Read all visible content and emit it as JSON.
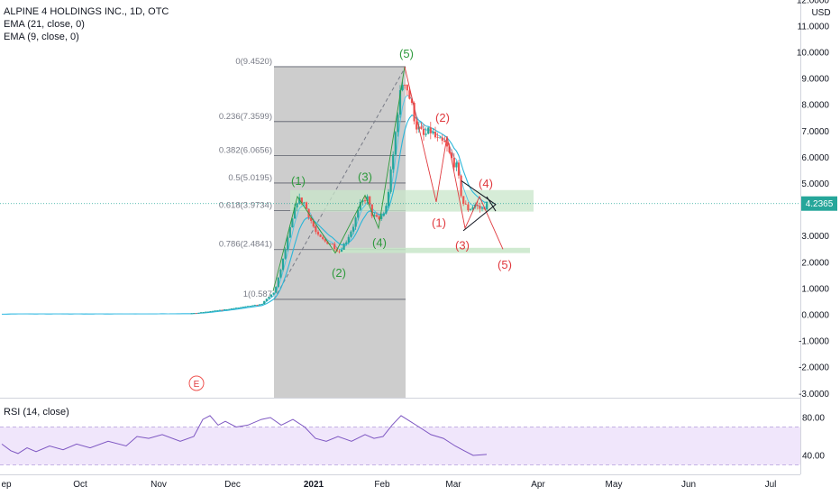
{
  "legend": {
    "symbol": "ALPINE 4 HOLDINGS INC., 1D, OTC",
    "ema21": "EMA (21, close, 0)",
    "ema9": "EMA (9, close, 0)",
    "rsi": "RSI (14, close)"
  },
  "price_axis": {
    "currency": "USD",
    "last_price": "4.2365",
    "last_price_value": 4.2365
  },
  "earnings_marker": "E",
  "colors": {
    "up": "#26a69a",
    "down": "#ef5350",
    "ema": "#2ab6d9",
    "rsi": "#7e57c2",
    "rsi_band": "#f0e6fb",
    "fib_box": "#b2b2b2",
    "zone": "#c8e6c9",
    "wave_green": "#2e9a3c",
    "wave_red": "#e0393e"
  },
  "chart_data": {
    "type": "candlestick",
    "x_ticks": [
      "ep",
      "Oct",
      "Nov",
      "Dec",
      "2021",
      "Feb",
      "Mar",
      "Apr",
      "May",
      "Jun",
      "Jul"
    ],
    "y_ticks": [
      "12.0000",
      "11.0000",
      "10.0000",
      "9.0000",
      "8.0000",
      "7.0000",
      "6.0000",
      "5.0000",
      "3.0000",
      "2.0000",
      "1.0000",
      "0.0000",
      "-1.0000",
      "-2.0000",
      "-3.0000"
    ],
    "ylim": [
      -3,
      12
    ],
    "fib_levels": [
      {
        "label": "0(9.4520)",
        "value": 9.452
      },
      {
        "label": "0.236(7.3599)",
        "value": 7.3599
      },
      {
        "label": "0.382(6.0656)",
        "value": 6.0656
      },
      {
        "label": "0.5(5.0195)",
        "value": 5.0195
      },
      {
        "label": "0.618(3.9734)",
        "value": 3.9734
      },
      {
        "label": "0.786(2.4841)",
        "value": 2.4841
      },
      {
        "label": "1(0.587",
        "value": 0.587
      }
    ],
    "waves_green": [
      "(1)",
      "(2)",
      "(3)",
      "(4)",
      "(5)"
    ],
    "waves_red": [
      "(1)",
      "(2)",
      "(3)",
      "(4)",
      "(5)"
    ],
    "rsi": {
      "ticks": [
        "80.00",
        "40.00"
      ],
      "band": [
        30,
        70
      ]
    }
  }
}
